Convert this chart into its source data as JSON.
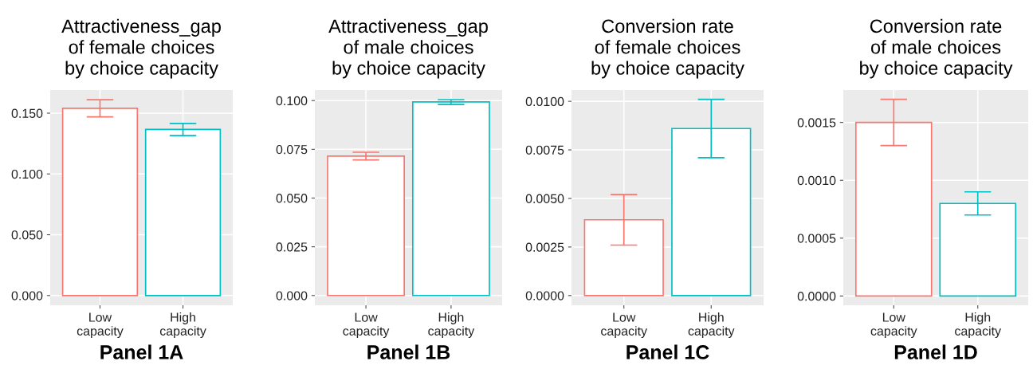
{
  "chart_data": [
    {
      "type": "bar",
      "title": "Attractiveness_gap\nof female choices\nby choice capacity",
      "xlabel": "Panel 1A",
      "categories": [
        "Low\ncapacity",
        "High\ncapacity"
      ],
      "values": [
        0.154,
        0.1366
      ],
      "errors": [
        [
          0.147,
          0.161
        ],
        [
          0.1316,
          0.1416
        ]
      ],
      "colors": [
        "#f8766d",
        "#00bfc4"
      ],
      "ylim": [
        -0.008,
        0.169
      ],
      "yticks": [
        {
          "value": 0,
          "label": "0.000"
        },
        {
          "value": 0.05,
          "label": "0.050"
        },
        {
          "value": 0.1,
          "label": "0.100"
        },
        {
          "value": 0.15,
          "label": "0.150"
        }
      ],
      "grid": true
    },
    {
      "type": "bar",
      "title": "Attractiveness_gap\nof male choices\nby choice capacity",
      "xlabel": "Panel 1B",
      "categories": [
        "Low\ncapacity",
        "High\ncapacity"
      ],
      "values": [
        0.0715,
        0.0993
      ],
      "errors": [
        [
          0.0696,
          0.0735
        ],
        [
          0.098,
          0.1005
        ]
      ],
      "colors": [
        "#f8766d",
        "#00bfc4"
      ],
      "ylim": [
        -0.005,
        0.1054
      ],
      "yticks": [
        {
          "value": 0,
          "label": "0.000"
        },
        {
          "value": 0.025,
          "label": "0.025"
        },
        {
          "value": 0.05,
          "label": "0.050"
        },
        {
          "value": 0.075,
          "label": "0.075"
        },
        {
          "value": 0.1,
          "label": "0.100"
        }
      ],
      "grid": true
    },
    {
      "type": "bar",
      "title": "Conversion rate\nof female choices\nby choice capacity",
      "xlabel": "Panel 1C",
      "categories": [
        "Low\ncapacity",
        "High\ncapacity"
      ],
      "values": [
        0.0039,
        0.0086
      ],
      "errors": [
        [
          0.0026,
          0.0052
        ],
        [
          0.0071,
          0.0101
        ]
      ],
      "colors": [
        "#f8766d",
        "#00bfc4"
      ],
      "ylim": [
        -0.0005,
        0.01058
      ],
      "yticks": [
        {
          "value": 0,
          "label": "0.0000"
        },
        {
          "value": 0.0025,
          "label": "0.0025"
        },
        {
          "value": 0.005,
          "label": "0.0050"
        },
        {
          "value": 0.0075,
          "label": "0.0075"
        },
        {
          "value": 0.01,
          "label": "0.0100"
        }
      ],
      "grid": true
    },
    {
      "type": "bar",
      "title": "Conversion rate\nof male choices\nby choice capacity",
      "xlabel": "Panel 1D",
      "categories": [
        "Low\ncapacity",
        "High\ncapacity"
      ],
      "values": [
        0.0015,
        0.0008
      ],
      "errors": [
        [
          0.0013,
          0.0017
        ],
        [
          0.0007,
          0.0009
        ]
      ],
      "colors": [
        "#f8766d",
        "#00bfc4"
      ],
      "ylim": [
        -8e-05,
        0.00178
      ],
      "yticks": [
        {
          "value": 0,
          "label": "0.0000"
        },
        {
          "value": 0.0005,
          "label": "0.0005"
        },
        {
          "value": 0.001,
          "label": "0.0010"
        },
        {
          "value": 0.0015,
          "label": "0.0015"
        }
      ],
      "grid": true
    }
  ]
}
